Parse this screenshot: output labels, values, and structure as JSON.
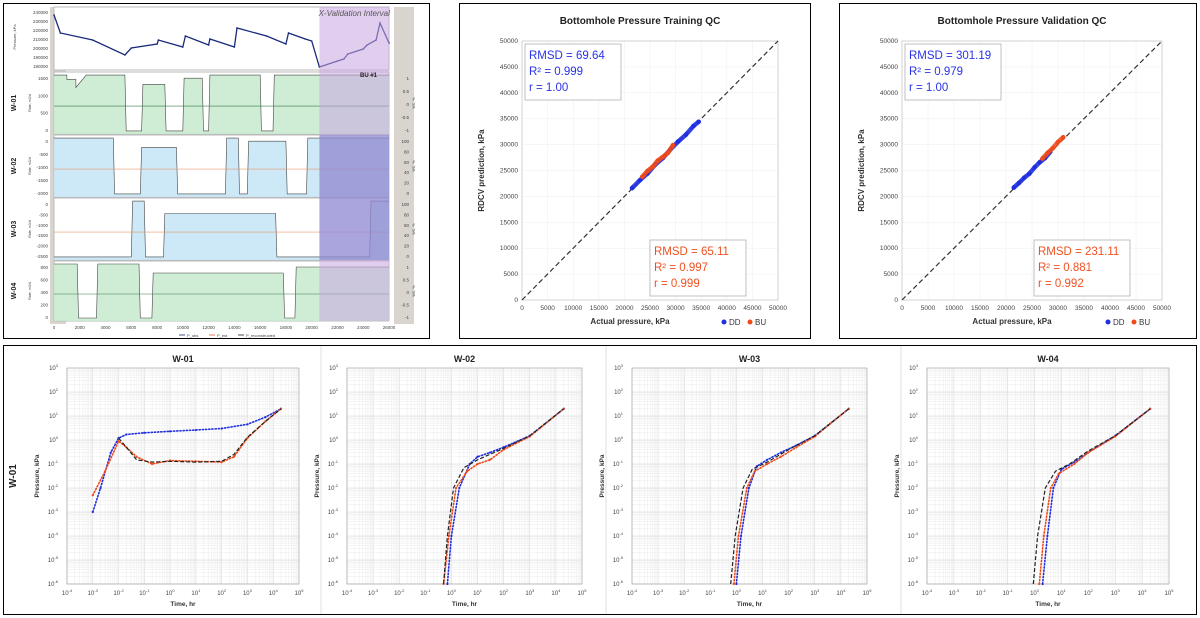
{
  "history_panel": {
    "wells": [
      "W-01",
      "W-02",
      "W-03",
      "W-04"
    ],
    "interval_label": "X-Validation Interval",
    "bu_label": "BU #1",
    "pressure_axis_label": "Pressure, kPa",
    "rate_axis_label": "Rate, m3/d",
    "wc_axis_label": "WC, %",
    "x_ticks": [
      "0",
      "2000",
      "4000",
      "6000",
      "8000",
      "10000",
      "12000",
      "14000",
      "16000",
      "18000",
      "20000",
      "22000",
      "24000",
      "26000"
    ],
    "pressure_ticks": [
      "240000",
      "230000",
      "220000",
      "210000",
      "200000",
      "190000",
      "180000"
    ],
    "w01_rate_ticks": [
      "1500",
      "1000",
      "500",
      "0"
    ],
    "w01_right_ticks": [
      "1",
      "0.5",
      "0",
      "-0.5",
      "-1"
    ],
    "w02_rate_ticks": [
      "0",
      "-500",
      "-1000",
      "-1500",
      "-2000"
    ],
    "w02_right_ticks": [
      "100",
      "80",
      "60",
      "40",
      "20",
      "0"
    ],
    "w03_rate_ticks": [
      "0",
      "-500",
      "-1000",
      "-1500",
      "-2000",
      "-2500"
    ],
    "w03_right_ticks": [
      "100",
      "80",
      "60",
      "40",
      "20",
      "0"
    ],
    "w04_rate_ticks": [
      "800",
      "600",
      "400",
      "200",
      "0"
    ],
    "w04_right_ticks": [
      "1",
      "0.5",
      "0",
      "-0.5",
      "-1"
    ],
    "legend": [
      "P_obs",
      "P_est",
      "P_reconstructed"
    ],
    "colors": {
      "pressure": "#1a2a7a",
      "interval": "#c9a6e0",
      "rate_fill_green": "#c9ebcf",
      "rate_fill_blue": "#c8e6f6",
      "rate_line_orange": "#e59a6f",
      "grey_band": "#d9d4ce"
    }
  },
  "chart_data": [
    {
      "type": "scatter",
      "title": "Bottomhole Pressure Training QC",
      "xlabel": "Actual pressure, kPa",
      "ylabel": "RDCV prediction, kPa",
      "xlim": [
        0,
        50000
      ],
      "ylim": [
        0,
        50000
      ],
      "ticks": [
        "0",
        "5000",
        "10000",
        "15000",
        "20000",
        "25000",
        "30000",
        "35000",
        "40000",
        "45000",
        "50000"
      ],
      "series": [
        {
          "name": "DD",
          "color": "#1f2fe0",
          "x": [
            21500,
            23000,
            24500,
            26000,
            27500,
            29000,
            30500,
            32000,
            33500,
            34500
          ],
          "y": [
            21600,
            23100,
            24400,
            26100,
            27400,
            29100,
            30600,
            31900,
            33600,
            34400
          ]
        },
        {
          "name": "BU",
          "color": "#f04a1a",
          "x": [
            23500,
            24500,
            25500,
            26500,
            27500,
            28500,
            29500
          ],
          "y": [
            23800,
            24900,
            25700,
            26900,
            27600,
            28400,
            29900
          ]
        }
      ],
      "stats_dd": [
        "RMSD = 69.64",
        "R² = 0.999",
        "r = 1.00"
      ],
      "stats_bu": [
        "RMSD = 65.11",
        "R² = 0.997",
        "r = 0.999"
      ],
      "legend_labels": [
        "DD",
        "BU"
      ]
    },
    {
      "type": "scatter",
      "title": "Bottomhole Pressure Validation QC",
      "xlabel": "Actual pressure, kPa",
      "ylabel": "RDCV prediction, kPa",
      "xlim": [
        0,
        50000
      ],
      "ylim": [
        0,
        50000
      ],
      "ticks": [
        "0",
        "5000",
        "10000",
        "15000",
        "20000",
        "25000",
        "30000",
        "35000",
        "40000",
        "45000",
        "50000"
      ],
      "series": [
        {
          "name": "DD",
          "color": "#1f2fe0",
          "x": [
            21500,
            22500,
            23500,
            24500,
            25500,
            26500,
            27500,
            28500
          ],
          "y": [
            21700,
            22600,
            23600,
            24400,
            25600,
            26600,
            27400,
            28600
          ]
        },
        {
          "name": "BU",
          "color": "#f04a1a",
          "x": [
            27000,
            28000,
            29000,
            30000,
            31000
          ],
          "y": [
            27300,
            28400,
            29300,
            30500,
            31400
          ]
        }
      ],
      "stats_dd": [
        "RMSD = 301.19",
        "R² = 0.979",
        "r = 1.00"
      ],
      "stats_bu": [
        "RMSD = 231.11",
        "R² = 0.881",
        "r = 0.992"
      ],
      "legend_labels": [
        "DD",
        "BU"
      ]
    },
    {
      "type": "line",
      "title": "W-01",
      "xlabel": "Time, hr",
      "ylabel": "Pressure, kPa",
      "log_axes": true,
      "xlim": [
        0.0001,
        100000
      ],
      "ylim": [
        1e-06,
        1000
      ],
      "series": [
        {
          "name": "pressure_blue",
          "color": "#1f2fe0",
          "x": [
            0.001,
            0.002,
            0.005,
            0.01,
            0.02,
            0.1,
            1,
            10,
            100,
            1000,
            5000,
            20000
          ],
          "y": [
            0.001,
            0.01,
            0.3,
            1.2,
            1.7,
            2.0,
            2.3,
            2.6,
            3.0,
            4.5,
            9,
            20
          ]
        },
        {
          "name": "derivative_red",
          "color": "#f04a1a",
          "x": [
            0.001,
            0.003,
            0.01,
            0.02,
            0.05,
            0.2,
            1,
            10,
            100,
            300,
            1000,
            5000,
            20000
          ],
          "y": [
            0.005,
            0.05,
            0.9,
            0.5,
            0.2,
            0.1,
            0.14,
            0.13,
            0.12,
            0.2,
            1.2,
            6,
            20
          ]
        },
        {
          "name": "model_black",
          "color": "#222222",
          "x": [
            0.01,
            0.02,
            0.05,
            0.2,
            1,
            10,
            100,
            300,
            1000,
            5000,
            20000
          ],
          "y": [
            1.2,
            0.5,
            0.15,
            0.12,
            0.13,
            0.12,
            0.13,
            0.25,
            1.3,
            6,
            20
          ]
        }
      ],
      "row_label": "W-01"
    },
    {
      "type": "line",
      "title": "W-02",
      "xlabel": "Time, hr",
      "ylabel": "Pressure, kPa",
      "log_axes": true,
      "xlim": [
        0.0001,
        100000
      ],
      "ylim": [
        1e-06,
        1000
      ],
      "series": [
        {
          "name": "pressure_blue",
          "color": "#1f2fe0",
          "x": [
            0.7,
            1,
            2,
            5,
            10,
            30,
            100,
            1000,
            20000
          ],
          "y": [
            1e-06,
            0.0001,
            0.01,
            0.1,
            0.2,
            0.3,
            0.5,
            1.5,
            20
          ]
        },
        {
          "name": "derivative_red",
          "color": "#f04a1a",
          "x": [
            0.5,
            0.8,
            1.5,
            4,
            10,
            30,
            100,
            1000,
            20000
          ],
          "y": [
            1e-06,
            0.0001,
            0.01,
            0.05,
            0.1,
            0.15,
            0.4,
            1.4,
            20
          ]
        },
        {
          "name": "model_black",
          "color": "#222222",
          "x": [
            0.5,
            0.7,
            1.2,
            3,
            10,
            100,
            1000,
            20000
          ],
          "y": [
            1e-06,
            0.0001,
            0.01,
            0.07,
            0.15,
            0.45,
            1.5,
            20
          ]
        }
      ]
    },
    {
      "type": "line",
      "title": "W-03",
      "xlabel": "Time, hr",
      "ylabel": "Pressure, kPa",
      "log_axes": true,
      "xlim": [
        0.0001,
        100000
      ],
      "ylim": [
        1e-06,
        1000
      ],
      "series": [
        {
          "name": "pressure_blue",
          "color": "#1f2fe0",
          "x": [
            1,
            1.5,
            3,
            6,
            15,
            50,
            200,
            1000,
            20000
          ],
          "y": [
            1e-06,
            0.0001,
            0.01,
            0.08,
            0.15,
            0.3,
            0.6,
            1.5,
            20
          ]
        },
        {
          "name": "derivative_red",
          "color": "#f04a1a",
          "x": [
            0.8,
            1.2,
            2.5,
            5,
            15,
            50,
            200,
            1000,
            20000
          ],
          "y": [
            1e-06,
            0.0001,
            0.01,
            0.05,
            0.1,
            0.2,
            0.5,
            1.4,
            20
          ]
        },
        {
          "name": "model_black",
          "color": "#222222",
          "x": [
            0.6,
            0.9,
            1.8,
            4,
            15,
            100,
            1000,
            20000
          ],
          "y": [
            1e-06,
            0.0001,
            0.01,
            0.06,
            0.12,
            0.4,
            1.5,
            20
          ]
        }
      ]
    },
    {
      "type": "line",
      "title": "W-04",
      "xlabel": "Time, hr",
      "ylabel": "Pressure, kPa",
      "log_axes": true,
      "xlim": [
        0.0001,
        100000
      ],
      "ylim": [
        1e-06,
        1000
      ],
      "series": [
        {
          "name": "pressure_blue",
          "color": "#1f2fe0",
          "x": [
            2,
            3,
            5,
            10,
            30,
            100,
            1000,
            20000
          ],
          "y": [
            1e-06,
            0.0001,
            0.01,
            0.06,
            0.12,
            0.3,
            1.5,
            20
          ]
        },
        {
          "name": "derivative_red",
          "color": "#f04a1a",
          "x": [
            1.5,
            2.2,
            4,
            8,
            30,
            100,
            1000,
            20000
          ],
          "y": [
            1e-06,
            0.0001,
            0.01,
            0.04,
            0.1,
            0.3,
            1.4,
            20
          ]
        },
        {
          "name": "model_black",
          "color": "#222222",
          "x": [
            0.9,
            1.3,
            2.5,
            6,
            20,
            100,
            1000,
            20000
          ],
          "y": [
            1e-06,
            0.0001,
            0.01,
            0.05,
            0.1,
            0.35,
            1.5,
            20
          ]
        }
      ]
    }
  ]
}
